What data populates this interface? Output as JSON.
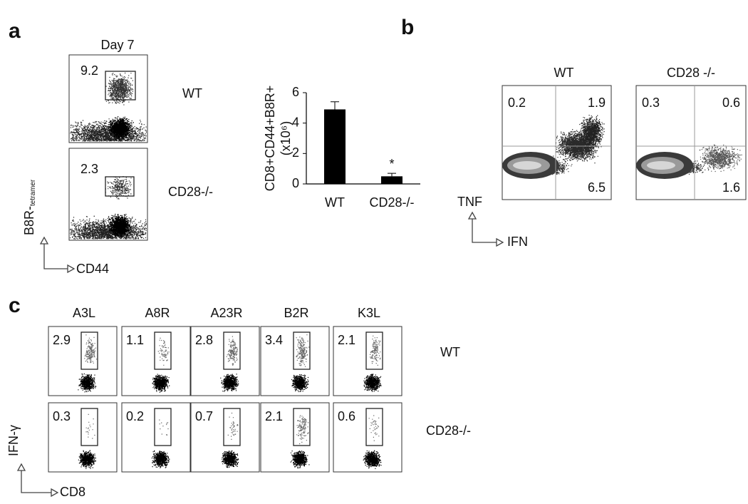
{
  "panels": {
    "a": {
      "label": "a",
      "timepoint": "Day 7",
      "rows": [
        {
          "name": "WT",
          "gate": 9.2
        },
        {
          "name": "CD28-/-",
          "gate": 2.3
        }
      ],
      "y_axis": "B8R-",
      "y_axis_sub": "tetramer",
      "x_axis": "CD44"
    },
    "b": {
      "label": "b",
      "columns": [
        {
          "name": "WT",
          "quadrants": [
            0.2,
            1.9,
            6.5
          ]
        },
        {
          "name": "CD28 -/-",
          "quadrants": [
            0.3,
            0.6,
            1.6
          ]
        }
      ],
      "y_axis": "TNF",
      "x_axis": "IFN"
    },
    "c": {
      "label": "c",
      "epitopes": [
        "A3L",
        "A8R",
        "A23R",
        "B2R",
        "K3L"
      ],
      "rows": [
        {
          "name": "WT",
          "gates": [
            2.9,
            1.1,
            2.8,
            3.4,
            2.1
          ]
        },
        {
          "name": "CD28-/-",
          "gates": [
            0.3,
            0.2,
            0.7,
            2.1,
            0.6
          ]
        }
      ],
      "y_axis": "IFN-γ",
      "x_axis": "CD8"
    }
  },
  "chart_data": {
    "type": "bar",
    "categories": [
      "WT",
      "CD28-/-"
    ],
    "values": [
      4.9,
      0.5
    ],
    "errors": [
      0.5,
      0.2
    ],
    "color": "#000000",
    "ylim": [
      0,
      6
    ],
    "yticks": [
      0,
      2,
      4,
      6
    ],
    "ylabel": [
      "CD8+CD44+B8R+",
      "(x10⁶)"
    ],
    "annotation": "*"
  }
}
